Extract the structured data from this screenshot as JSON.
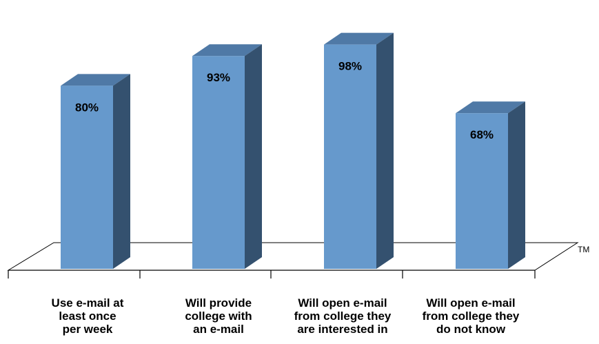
{
  "chart_data": {
    "type": "bar",
    "categories": [
      "Use e-mail at\nleast once\nper week",
      "Will provide\ncollege with\nan e-mail",
      "Will open e-mail\nfrom college they\nare interested in",
      "Will open e-mail\nfrom college they\ndo not know"
    ],
    "values": [
      80,
      93,
      98,
      68
    ],
    "value_labels": [
      "80%",
      "93%",
      "98%",
      "68%"
    ],
    "title": "",
    "xlabel": "",
    "ylabel": "",
    "ylim": [
      0,
      100
    ],
    "grid": false,
    "legend": "none",
    "style": "3d-column"
  },
  "colors": {
    "bar_front": "#6699cc",
    "bar_side": "#34516f",
    "bar_top": "#4f79a6",
    "floor_line": "#000000"
  },
  "mark": "TM"
}
